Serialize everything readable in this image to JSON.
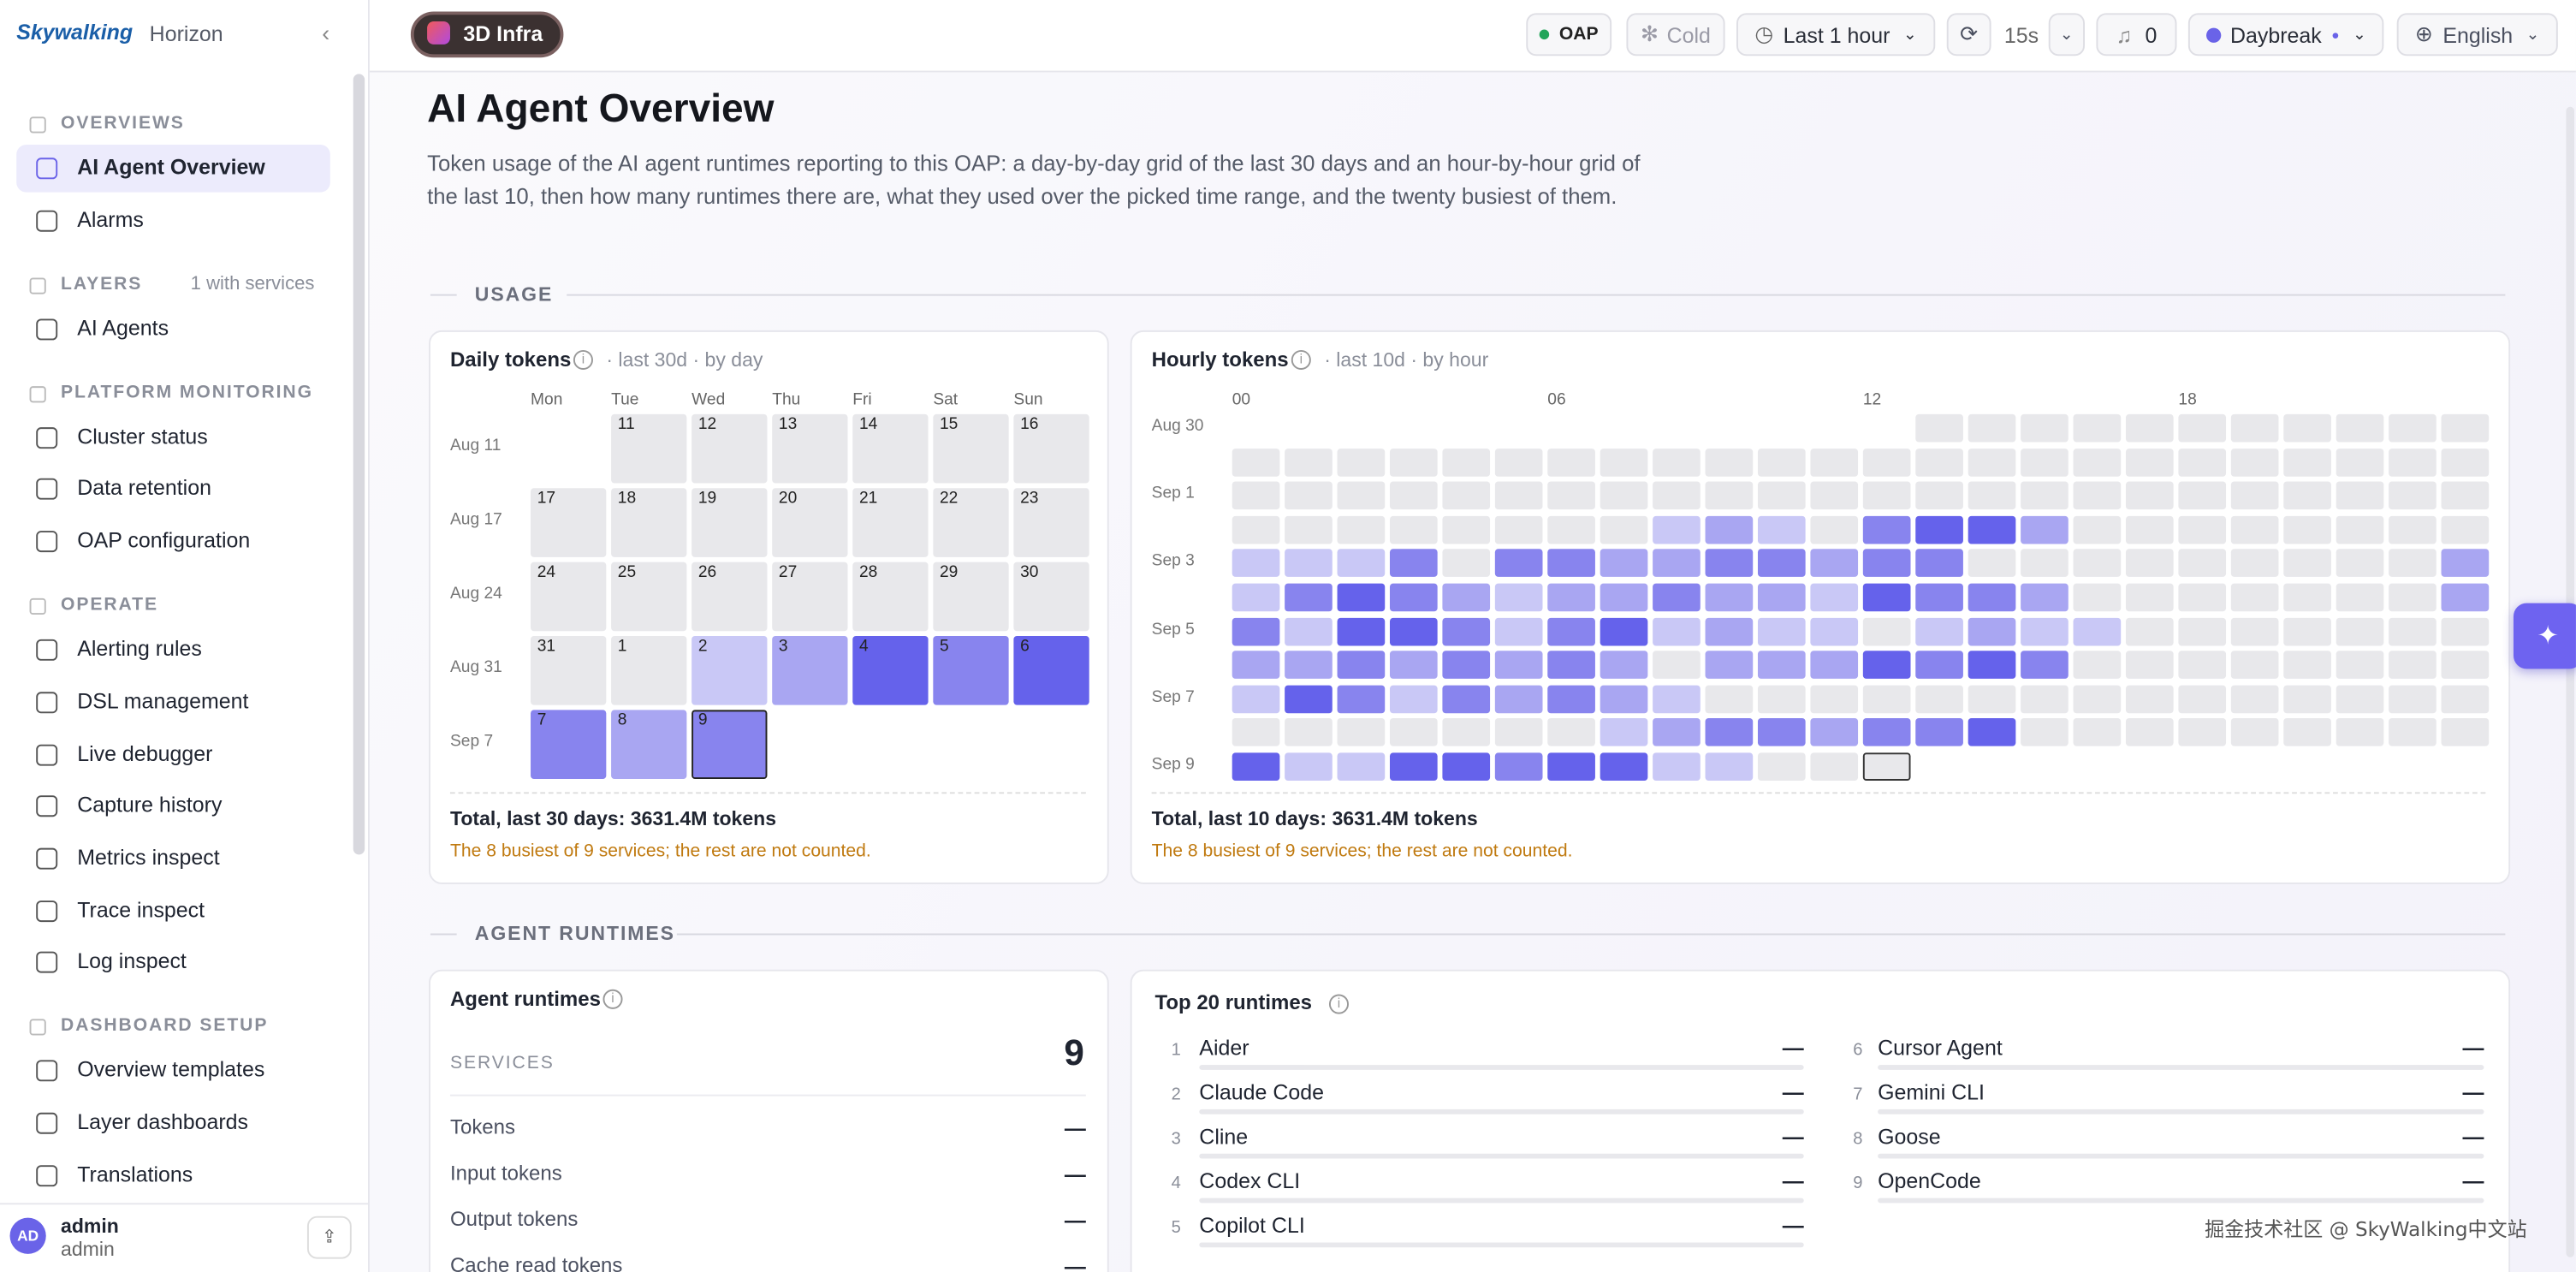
{
  "sidebar": {
    "brand": "Skywalking",
    "product": "Horizon",
    "groups": [
      {
        "title": "OVERVIEWS",
        "items": [
          {
            "label": "AI Agent Overview"
          },
          {
            "label": "Alarms"
          }
        ]
      },
      {
        "title": "LAYERS",
        "note": "1 with services",
        "items": [
          {
            "label": "AI Agents"
          }
        ]
      },
      {
        "title": "PLATFORM MONITORING",
        "items": [
          {
            "label": "Cluster status"
          },
          {
            "label": "Data retention"
          },
          {
            "label": "OAP configuration"
          }
        ]
      },
      {
        "title": "OPERATE",
        "items": [
          {
            "label": "Alerting rules"
          },
          {
            "label": "DSL management"
          },
          {
            "label": "Live debugger"
          },
          {
            "label": "Capture history"
          },
          {
            "label": "Metrics inspect"
          },
          {
            "label": "Trace inspect"
          },
          {
            "label": "Log inspect"
          }
        ]
      },
      {
        "title": "DASHBOARD SETUP",
        "items": [
          {
            "label": "Overview templates"
          },
          {
            "label": "Layer dashboards"
          },
          {
            "label": "Translations"
          }
        ]
      }
    ],
    "user": {
      "initials": "AD",
      "name": "admin",
      "role": "admin"
    }
  },
  "topbar": {
    "layer": "3D Infra",
    "oap": "OAP",
    "cold": "Cold",
    "range": "Last 1 hour",
    "refresh": "15s",
    "alerts": 0,
    "theme": "Daybreak",
    "language": "English"
  },
  "header": {
    "title": "AI Agent Overview",
    "description": "Token usage of the AI agent runtimes reporting to this OAP: a day-by-day grid of the last 30 days and an hour-by-hour grid of the last 10, then how many runtimes there are, what they used over the picked time range, and the twenty busiest of them."
  },
  "usage": {
    "title": "USAGE"
  },
  "daily": {
    "title": "Daily tokens",
    "meta": "· last 30d · by day",
    "weekdays": [
      "Mon",
      "Tue",
      "Wed",
      "Thu",
      "Fri",
      "Sat",
      "Sun"
    ],
    "rows": [
      {
        "label": "Aug 11",
        "days": [
          null,
          11,
          12,
          13,
          14,
          15,
          16
        ],
        "levels": [
          null,
          0,
          0,
          0,
          0,
          0,
          0
        ]
      },
      {
        "label": "Aug 17",
        "days": [
          17,
          18,
          19,
          20,
          21,
          22,
          23
        ],
        "levels": [
          0,
          0,
          0,
          0,
          0,
          0,
          0
        ]
      },
      {
        "label": "Aug 24",
        "days": [
          24,
          25,
          26,
          27,
          28,
          29,
          30
        ],
        "levels": [
          0,
          0,
          0,
          0,
          0,
          0,
          0
        ]
      },
      {
        "label": "Aug 31",
        "days": [
          31,
          1,
          2,
          3,
          4,
          5,
          6
        ],
        "levels": [
          0,
          0,
          1,
          2,
          4,
          3,
          4
        ]
      },
      {
        "label": "Sep 7",
        "days": [
          7,
          8,
          9,
          null,
          null,
          null,
          null
        ],
        "levels": [
          3,
          2,
          3,
          null,
          null,
          null,
          null
        ]
      }
    ],
    "total": "Total, last 30 days: 3631.4M tokens",
    "note": "The 8 busiest of 9 services; the rest are not counted."
  },
  "hourly": {
    "title": "Hourly tokens",
    "meta": "· last 10d · by hour",
    "hours": [
      "00",
      "06",
      "12",
      "18"
    ],
    "rows": [
      {
        "label": "Aug 30",
        "levels": [
          null,
          null,
          null,
          null,
          null,
          null,
          null,
          null,
          null,
          null,
          null,
          null,
          null,
          0,
          0,
          0,
          0,
          0,
          0,
          0,
          0,
          0,
          0,
          0
        ]
      },
      {
        "label": null,
        "levels": [
          0,
          0,
          0,
          0,
          0,
          0,
          0,
          0,
          0,
          0,
          0,
          0,
          0,
          0,
          0,
          0,
          0,
          0,
          0,
          0,
          0,
          0,
          0,
          0
        ]
      },
      {
        "label": "Sep 1",
        "levels": [
          0,
          0,
          0,
          0,
          0,
          0,
          0,
          0,
          0,
          0,
          0,
          0,
          0,
          0,
          0,
          0,
          0,
          0,
          0,
          0,
          0,
          0,
          0,
          0
        ]
      },
      {
        "label": null,
        "levels": [
          0,
          0,
          0,
          0,
          0,
          0,
          0,
          0,
          1,
          2,
          1,
          0,
          3,
          4,
          4,
          2,
          0,
          0,
          0,
          0,
          0,
          0,
          0,
          0
        ]
      },
      {
        "label": "Sep 3",
        "levels": [
          1,
          1,
          1,
          3,
          0,
          3,
          3,
          2,
          2,
          3,
          3,
          2,
          3,
          3,
          0,
          0,
          0,
          0,
          0,
          0,
          0,
          0,
          0,
          2
        ]
      },
      {
        "label": null,
        "levels": [
          1,
          3,
          4,
          3,
          2,
          1,
          2,
          2,
          3,
          2,
          2,
          1,
          4,
          3,
          3,
          2,
          0,
          0,
          0,
          0,
          0,
          0,
          0,
          2
        ]
      },
      {
        "label": "Sep 5",
        "levels": [
          3,
          1,
          4,
          4,
          3,
          1,
          3,
          4,
          1,
          2,
          1,
          1,
          0,
          1,
          2,
          1,
          1,
          0,
          0,
          0,
          0,
          0,
          0,
          0
        ]
      },
      {
        "label": null,
        "levels": [
          2,
          2,
          3,
          2,
          3,
          2,
          3,
          2,
          0,
          2,
          2,
          2,
          4,
          3,
          4,
          3,
          0,
          0,
          0,
          0,
          0,
          0,
          0,
          0
        ]
      },
      {
        "label": "Sep 7",
        "levels": [
          1,
          4,
          3,
          1,
          3,
          2,
          3,
          2,
          1,
          0,
          0,
          0,
          0,
          0,
          0,
          0,
          0,
          0,
          0,
          0,
          0,
          0,
          0,
          0
        ]
      },
      {
        "label": null,
        "levels": [
          0,
          0,
          0,
          0,
          0,
          0,
          0,
          1,
          2,
          3,
          3,
          2,
          3,
          3,
          4,
          0,
          0,
          0,
          0,
          0,
          0,
          0,
          0,
          0
        ]
      },
      {
        "label": "Sep 9",
        "levels": [
          4,
          1,
          1,
          4,
          4,
          3,
          4,
          4,
          1,
          1,
          0,
          0,
          0,
          null,
          null,
          null,
          null,
          null,
          null,
          null,
          null,
          null,
          null,
          null
        ]
      }
    ],
    "total": "Total, last 10 days: 3631.4M tokens",
    "note": "The 8 busiest of 9 services; the rest are not counted."
  },
  "runtimes_section": {
    "title": "AGENT RUNTIMES"
  },
  "agent_runtimes": {
    "title": "Agent runtimes",
    "services_label": "SERVICES",
    "services": 9,
    "metrics": [
      {
        "label": "Tokens",
        "value": "—"
      },
      {
        "label": "Input tokens",
        "value": "—"
      },
      {
        "label": "Output tokens",
        "value": "—"
      },
      {
        "label": "Cache read tokens",
        "value": "—"
      }
    ]
  },
  "top_runtimes": {
    "title": "Top 20 runtimes",
    "items": [
      {
        "rank": 1,
        "name": "Aider",
        "value": "—"
      },
      {
        "rank": 2,
        "name": "Claude Code",
        "value": "—"
      },
      {
        "rank": 3,
        "name": "Cline",
        "value": "—"
      },
      {
        "rank": 4,
        "name": "Codex CLI",
        "value": "—"
      },
      {
        "rank": 5,
        "name": "Copilot CLI",
        "value": "—"
      },
      {
        "rank": 6,
        "name": "Cursor Agent",
        "value": "—"
      },
      {
        "rank": 7,
        "name": "Gemini CLI",
        "value": "—"
      },
      {
        "rank": 8,
        "name": "Goose",
        "value": "—"
      },
      {
        "rank": 9,
        "name": "OpenCode",
        "value": "—"
      }
    ]
  },
  "watermark": "掘金技术社区 @ SkyWalking中文站"
}
